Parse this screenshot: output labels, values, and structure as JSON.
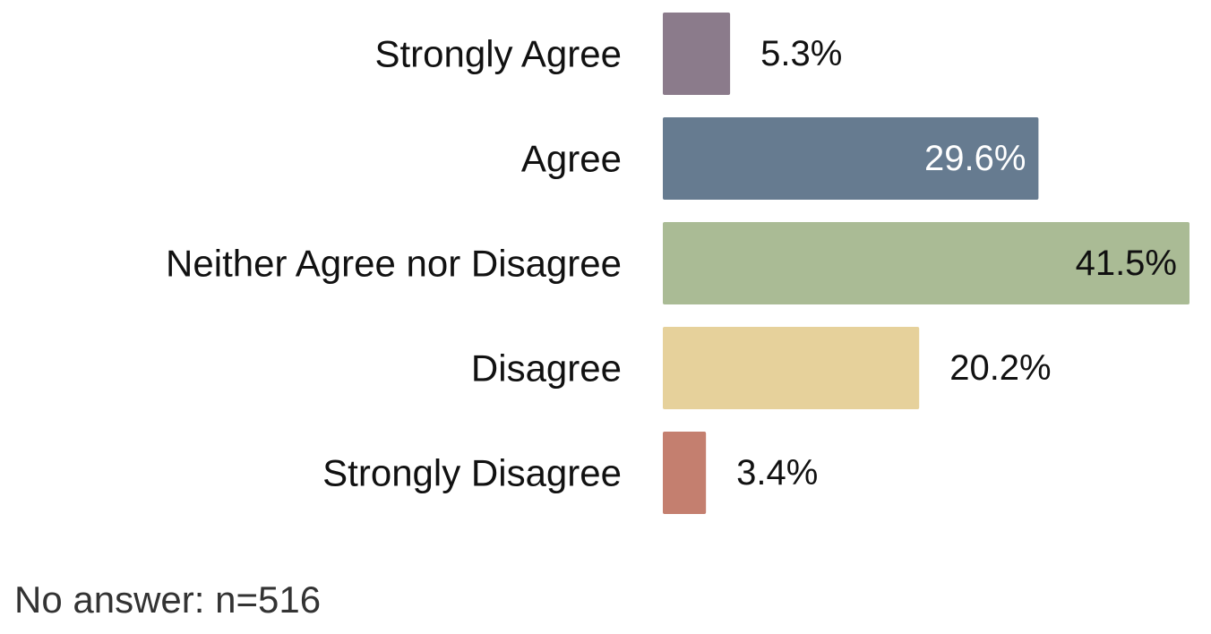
{
  "chart_data": {
    "type": "bar",
    "orientation": "horizontal",
    "categories": [
      "Strongly Agree",
      "Agree",
      "Neither Agree nor Disagree",
      "Disagree",
      "Strongly Disagree"
    ],
    "values": [
      5.3,
      29.6,
      41.5,
      20.2,
      3.4
    ],
    "value_labels": [
      "5.3%",
      "29.6%",
      "41.5%",
      "20.2%",
      "3.4%"
    ],
    "colors": [
      "#8b7b8b",
      "#667b90",
      "#aabb95",
      "#e6d19b",
      "#c47f6f"
    ],
    "label_colors": [
      "#111111",
      "#ffffff",
      "#111111",
      "#111111",
      "#111111"
    ],
    "label_inside": [
      false,
      true,
      true,
      false,
      false
    ],
    "xlim": [
      0,
      41.5
    ],
    "grid": false,
    "legend": "none"
  },
  "footnote": "No answer: n=516"
}
